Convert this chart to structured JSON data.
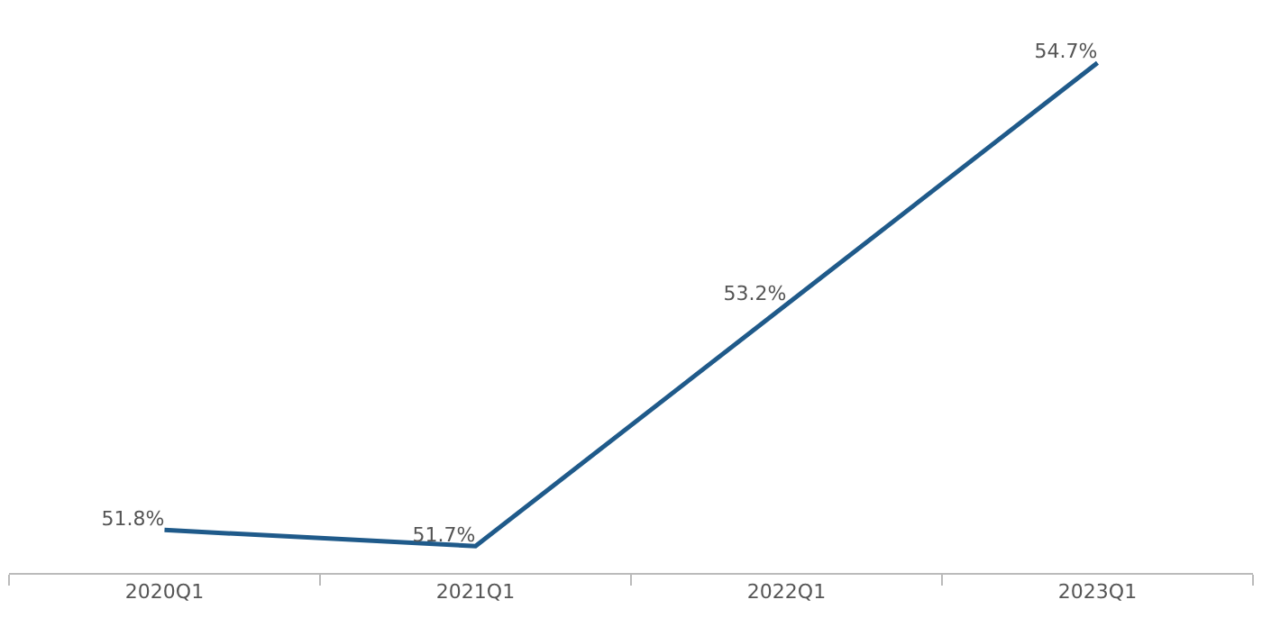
{
  "chart_data": {
    "type": "line",
    "categories": [
      "2020Q1",
      "2021Q1",
      "2022Q1",
      "2023Q1"
    ],
    "series": [
      {
        "color": "#1f5a8a",
        "values": [
          51.8,
          51.7,
          53.2,
          54.7
        ],
        "value_labels": [
          "51.8%",
          "51.7%",
          "53.2%",
          "54.7%"
        ]
      }
    ],
    "tick_labels": "x"
  }
}
